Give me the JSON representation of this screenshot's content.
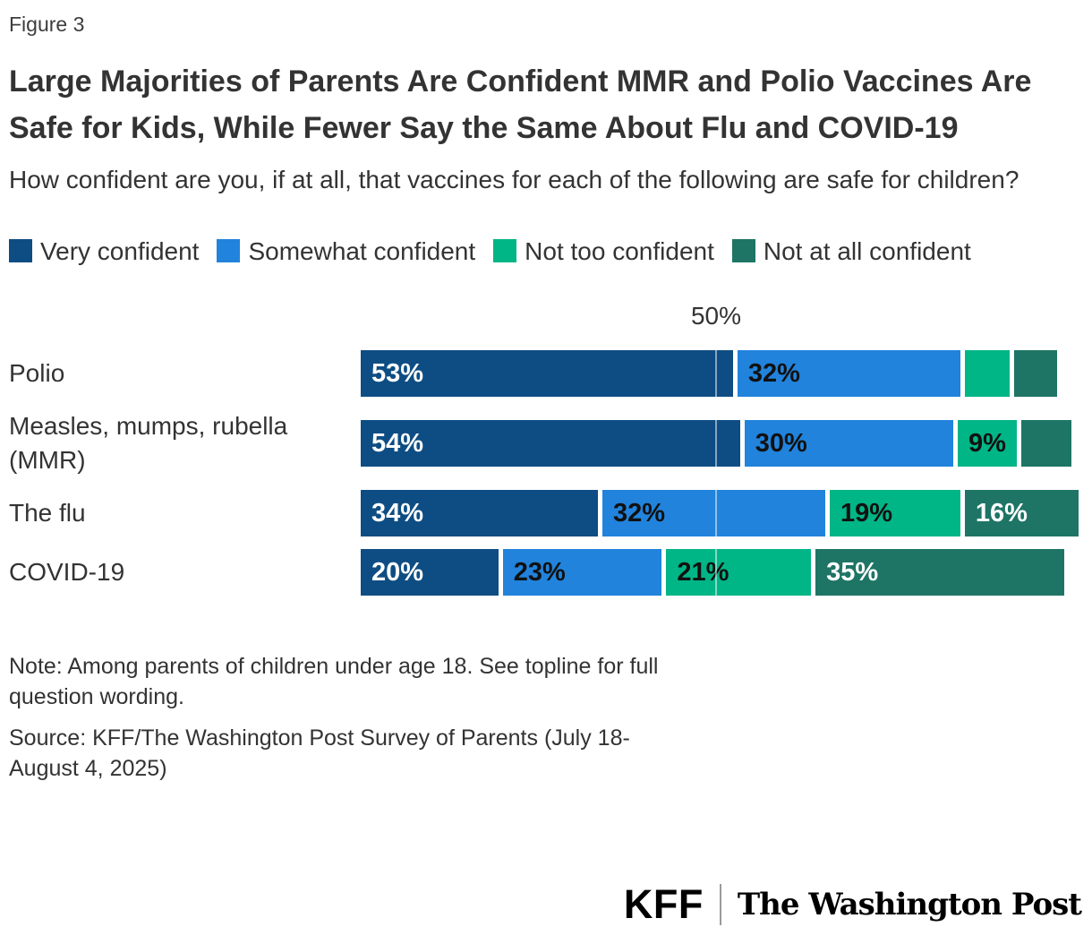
{
  "figure_label": "Figure 3",
  "title": "Large Majorities of Parents Are Confident MMR and Polio Vaccines Are Safe for Kids, While Fewer Say the Same About Flu and COVID-19",
  "subtitle": "How confident are you, if at all, that vaccines for each of the following are safe for children?",
  "note": "Note: Among parents of children under age 18. See topline for full question wording.",
  "source": "Source: KFF/The Washington Post Survey of Parents (July 18-August 4, 2025)",
  "logos": {
    "kff_label": "KFF",
    "washington_post_label": "The Washington Post"
  },
  "chart_data": {
    "type": "bar",
    "orientation": "horizontal_stacked",
    "title": "How confident are you, if at all, that vaccines for each of the following are safe for children?",
    "categories": [
      "Polio",
      "Measles, mumps, rubella (MMR)",
      "The flu",
      "COVID-19"
    ],
    "series": [
      {
        "name": "Very confident",
        "color": "#0e4d83",
        "label_color": "#ffffff",
        "values": [
          53,
          54,
          34,
          20
        ]
      },
      {
        "name": "Somewhat confident",
        "color": "#2183dc",
        "label_color": "#111111",
        "values": [
          32,
          30,
          32,
          23
        ]
      },
      {
        "name": "Not too confident",
        "color": "#00b586",
        "label_color": "#111111",
        "values": [
          7,
          9,
          19,
          21
        ]
      },
      {
        "name": "Not at all confident",
        "color": "#1e7565",
        "label_color": "#ffffff",
        "values": [
          6,
          7,
          16,
          35
        ]
      }
    ],
    "visible_value_labels": [
      [
        "53%",
        "32%",
        "",
        ""
      ],
      [
        "54%",
        "30%",
        "9%",
        ""
      ],
      [
        "34%",
        "32%",
        "19%",
        "16%"
      ],
      [
        "20%",
        "23%",
        "21%",
        "35%"
      ]
    ],
    "xlim": [
      0,
      100
    ],
    "gridline_position": 50,
    "gridline_tick_label": "50%",
    "legend_position": "top",
    "grid": "single 50% vertical gridline overlaid on bars"
  }
}
